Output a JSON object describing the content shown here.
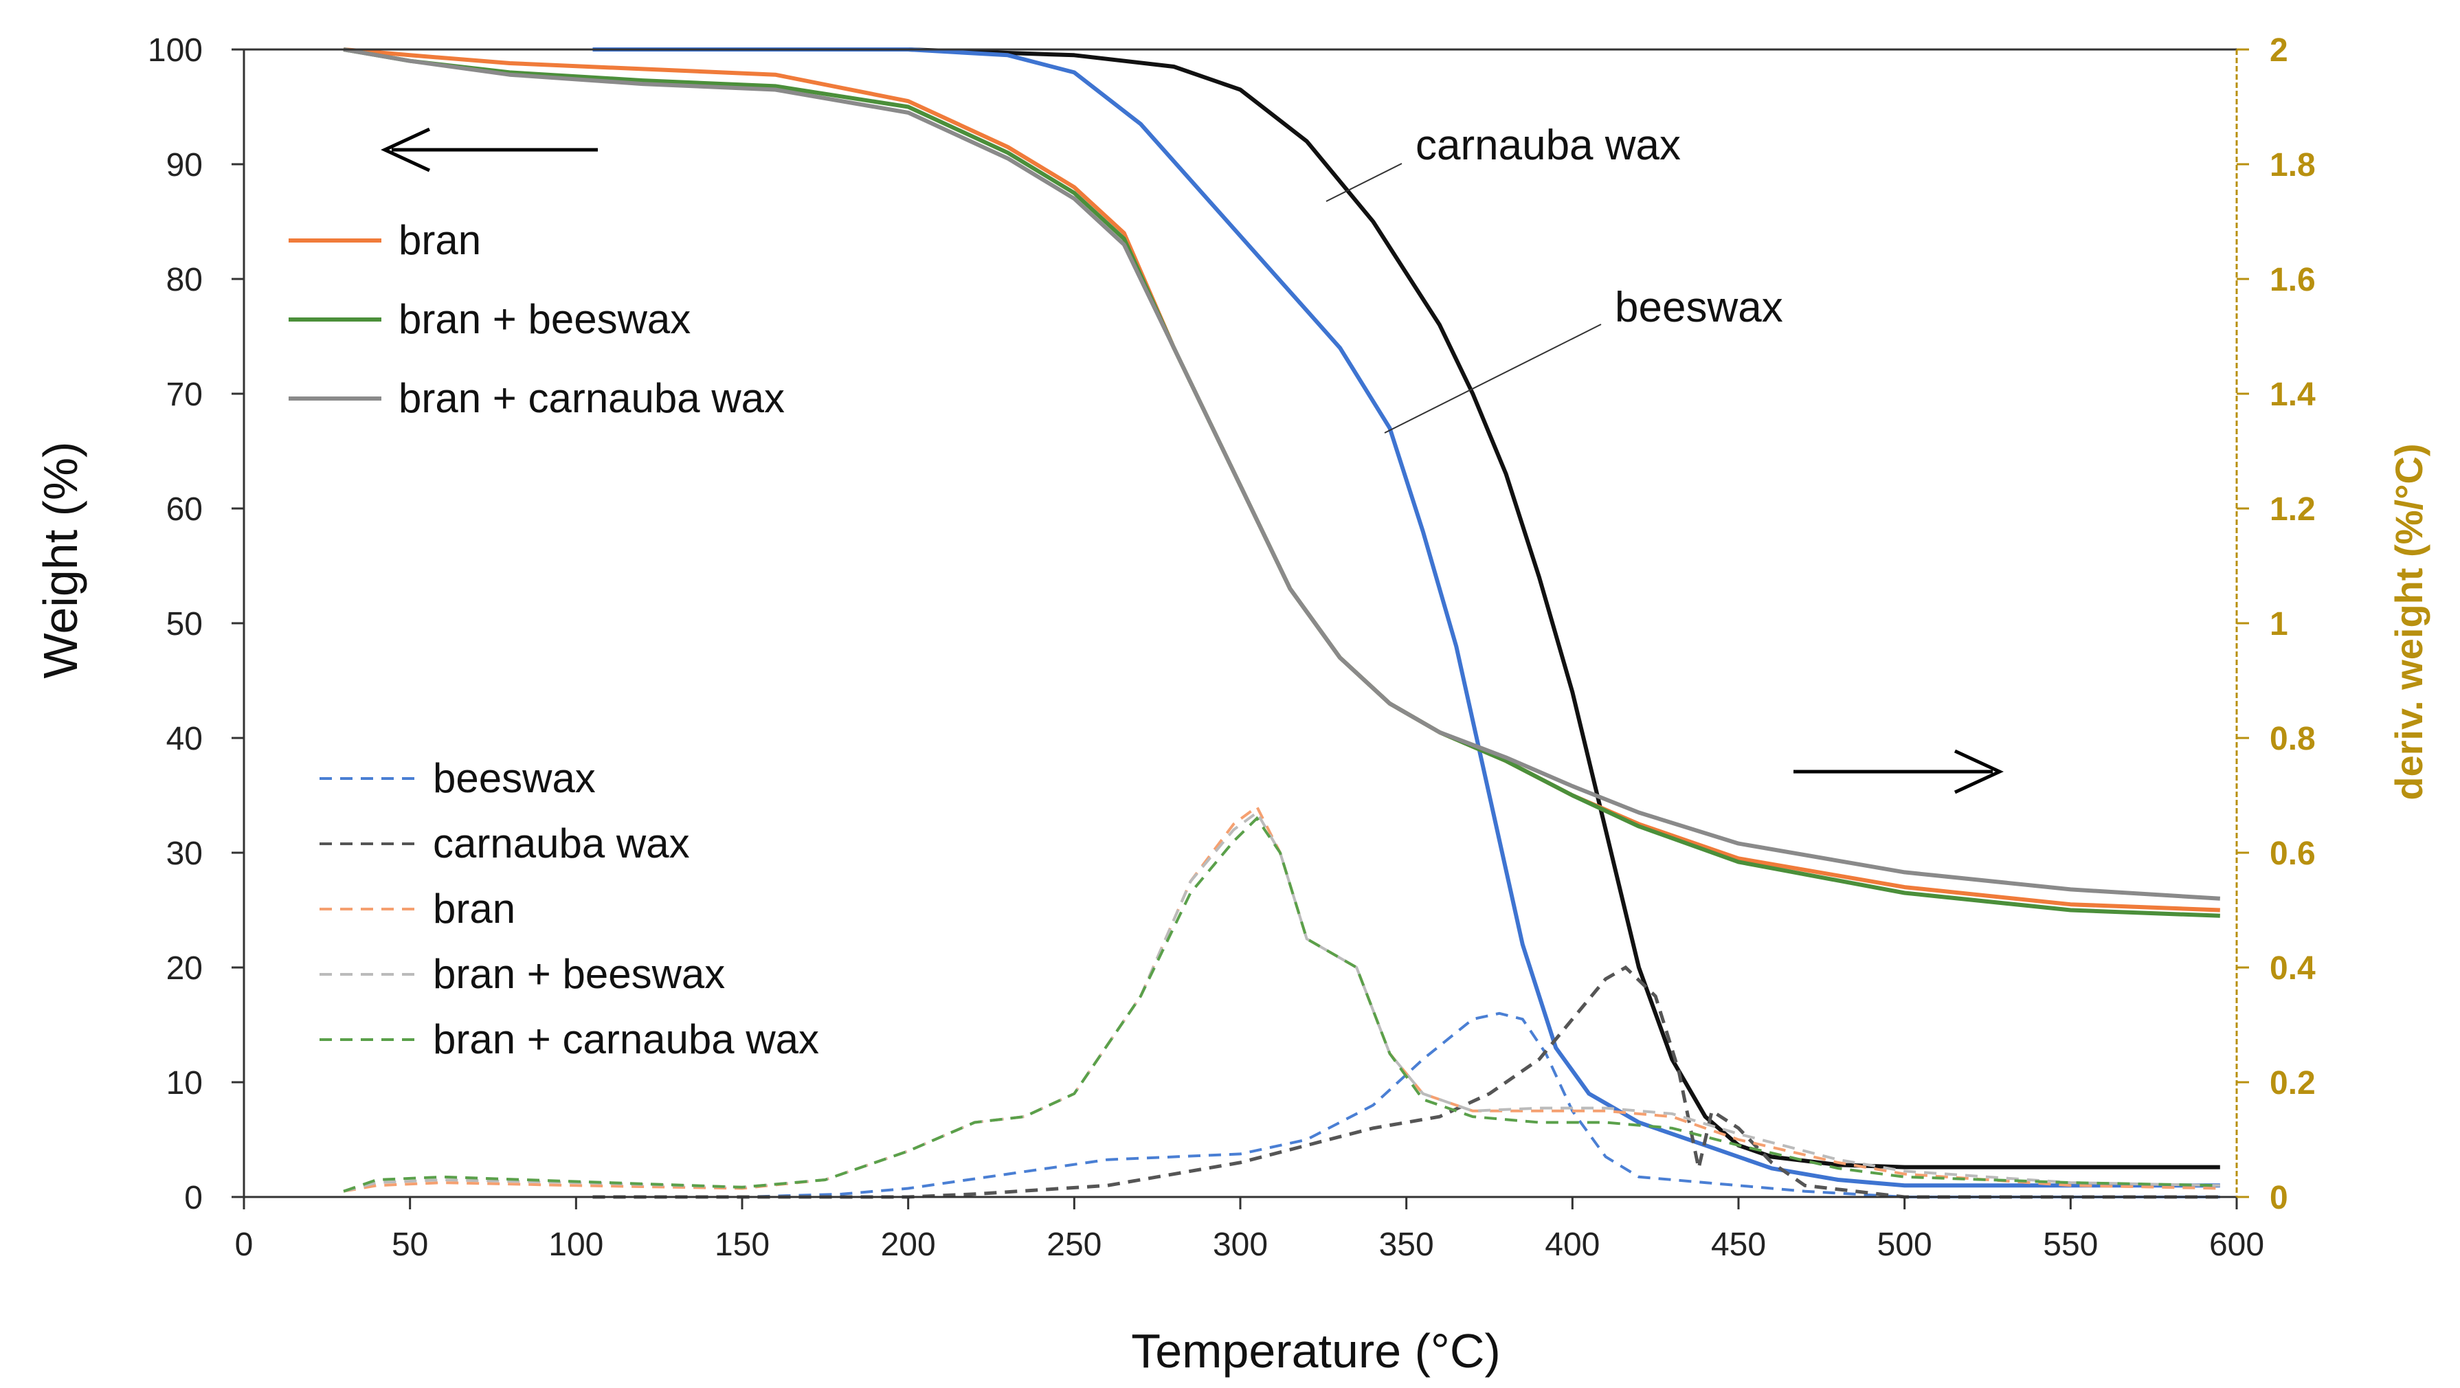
{
  "chart_data": {
    "type": "line",
    "x_axis": {
      "label": "Temperature (°C)",
      "min": 0,
      "max": 600,
      "ticks": [
        0,
        50,
        100,
        150,
        200,
        250,
        300,
        350,
        400,
        450,
        500,
        550,
        600
      ]
    },
    "y_axis_left": {
      "label": "Weight (%)",
      "min": 0,
      "max": 100,
      "ticks": [
        0,
        10,
        20,
        30,
        40,
        50,
        60,
        70,
        80,
        90,
        100
      ]
    },
    "y_axis_right": {
      "label": "deriv. weight (%/°C)",
      "min": 0,
      "max": 2,
      "ticks": [
        "0",
        "0.2",
        "0.4",
        "0.6",
        "0.8",
        "1",
        "1.2",
        "1.4",
        "1.6",
        "1.8",
        "2"
      ],
      "color": "#b8900f"
    },
    "annotations": {
      "carnauba": "carnauba wax",
      "beeswax": "beeswax"
    },
    "legend_solid": [
      {
        "name": "bran",
        "color": "#f07b3a"
      },
      {
        "name": "bran + beeswax",
        "color": "#4b8f3a"
      },
      {
        "name": "bran + carnauba wax",
        "color": "#8a8a8a"
      }
    ],
    "legend_dashed": [
      {
        "name": "beeswax",
        "color": "#4a7fd4"
      },
      {
        "name": "carnauba wax",
        "color": "#555555"
      },
      {
        "name": "bran",
        "color": "#f5a070"
      },
      {
        "name": "bran + beeswax",
        "color": "#bbbbbb"
      },
      {
        "name": "bran + carnauba wax",
        "color": "#5aa04a"
      }
    ],
    "series_weight": [
      {
        "name": "carnauba wax",
        "color": "#111111",
        "points": [
          [
            105,
            100
          ],
          [
            200,
            100
          ],
          [
            250,
            99.5
          ],
          [
            280,
            98.5
          ],
          [
            300,
            96.5
          ],
          [
            320,
            92
          ],
          [
            340,
            85
          ],
          [
            360,
            76
          ],
          [
            370,
            70
          ],
          [
            380,
            63
          ],
          [
            390,
            54
          ],
          [
            400,
            44
          ],
          [
            410,
            32
          ],
          [
            420,
            20
          ],
          [
            430,
            12
          ],
          [
            440,
            7
          ],
          [
            450,
            4.5
          ],
          [
            460,
            3.5
          ],
          [
            480,
            2.8
          ],
          [
            500,
            2.6
          ],
          [
            550,
            2.6
          ],
          [
            595,
            2.6
          ]
        ]
      },
      {
        "name": "beeswax",
        "color": "#3e74d1",
        "points": [
          [
            105,
            100
          ],
          [
            200,
            100
          ],
          [
            230,
            99.5
          ],
          [
            250,
            98
          ],
          [
            270,
            93.5
          ],
          [
            290,
            87
          ],
          [
            310,
            80.5
          ],
          [
            330,
            74
          ],
          [
            345,
            67
          ],
          [
            355,
            58
          ],
          [
            365,
            48
          ],
          [
            375,
            35
          ],
          [
            385,
            22
          ],
          [
            395,
            13
          ],
          [
            405,
            9
          ],
          [
            420,
            6.5
          ],
          [
            440,
            4.5
          ],
          [
            460,
            2.5
          ],
          [
            480,
            1.5
          ],
          [
            500,
            1
          ],
          [
            550,
            1
          ],
          [
            595,
            1
          ]
        ]
      },
      {
        "name": "bran",
        "color": "#f07b3a",
        "points": [
          [
            30,
            100
          ],
          [
            50,
            99.5
          ],
          [
            80,
            98.8
          ],
          [
            120,
            98.3
          ],
          [
            160,
            97.8
          ],
          [
            200,
            95.5
          ],
          [
            230,
            91.5
          ],
          [
            250,
            88
          ],
          [
            265,
            84
          ],
          [
            280,
            74
          ],
          [
            300,
            62
          ],
          [
            315,
            53
          ],
          [
            330,
            47
          ],
          [
            345,
            43
          ],
          [
            360,
            40.5
          ],
          [
            380,
            38
          ],
          [
            400,
            35
          ],
          [
            420,
            32.5
          ],
          [
            450,
            29.5
          ],
          [
            500,
            27
          ],
          [
            550,
            25.5
          ],
          [
            595,
            25
          ]
        ]
      },
      {
        "name": "bran + beeswax",
        "color": "#4b8f3a",
        "points": [
          [
            30,
            100
          ],
          [
            50,
            99
          ],
          [
            80,
            98
          ],
          [
            120,
            97.3
          ],
          [
            160,
            96.8
          ],
          [
            200,
            95
          ],
          [
            230,
            91
          ],
          [
            250,
            87.5
          ],
          [
            265,
            83.5
          ],
          [
            280,
            74
          ],
          [
            300,
            62
          ],
          [
            315,
            53
          ],
          [
            330,
            47
          ],
          [
            345,
            43
          ],
          [
            360,
            40.5
          ],
          [
            380,
            38
          ],
          [
            400,
            35
          ],
          [
            420,
            32.3
          ],
          [
            450,
            29.2
          ],
          [
            500,
            26.5
          ],
          [
            550,
            25
          ],
          [
            595,
            24.5
          ]
        ]
      },
      {
        "name": "bran + carnauba wax",
        "color": "#8a8a8a",
        "points": [
          [
            30,
            100
          ],
          [
            50,
            99
          ],
          [
            80,
            97.8
          ],
          [
            120,
            97
          ],
          [
            160,
            96.5
          ],
          [
            200,
            94.5
          ],
          [
            230,
            90.5
          ],
          [
            250,
            87
          ],
          [
            265,
            83
          ],
          [
            280,
            74
          ],
          [
            300,
            62
          ],
          [
            315,
            53
          ],
          [
            330,
            47
          ],
          [
            345,
            43
          ],
          [
            360,
            40.5
          ],
          [
            380,
            38.3
          ],
          [
            400,
            35.8
          ],
          [
            420,
            33.5
          ],
          [
            450,
            30.8
          ],
          [
            500,
            28.3
          ],
          [
            550,
            26.8
          ],
          [
            595,
            26
          ]
        ]
      }
    ],
    "series_deriv": [
      {
        "name": "beeswax",
        "color": "#4a7fd4",
        "points": [
          [
            105,
            0
          ],
          [
            150,
            0
          ],
          [
            180,
            0.005
          ],
          [
            200,
            0.015
          ],
          [
            230,
            0.04
          ],
          [
            260,
            0.065
          ],
          [
            300,
            0.075
          ],
          [
            320,
            0.1
          ],
          [
            340,
            0.16
          ],
          [
            355,
            0.24
          ],
          [
            370,
            0.31
          ],
          [
            378,
            0.32
          ],
          [
            385,
            0.31
          ],
          [
            392,
            0.25
          ],
          [
            400,
            0.15
          ],
          [
            410,
            0.07
          ],
          [
            420,
            0.035
          ],
          [
            440,
            0.025
          ],
          [
            470,
            0.01
          ],
          [
            500,
            0
          ],
          [
            595,
            0
          ]
        ]
      },
      {
        "name": "carnauba wax",
        "color": "#555555",
        "points": [
          [
            105,
            0
          ],
          [
            200,
            0
          ],
          [
            220,
            0.005
          ],
          [
            260,
            0.02
          ],
          [
            300,
            0.06
          ],
          [
            320,
            0.09
          ],
          [
            340,
            0.12
          ],
          [
            360,
            0.14
          ],
          [
            375,
            0.18
          ],
          [
            390,
            0.24
          ],
          [
            400,
            0.31
          ],
          [
            410,
            0.38
          ],
          [
            416,
            0.4
          ],
          [
            425,
            0.35
          ],
          [
            432,
            0.22
          ],
          [
            438,
            0.05
          ],
          [
            442,
            0.15
          ],
          [
            450,
            0.12
          ],
          [
            460,
            0.06
          ],
          [
            470,
            0.02
          ],
          [
            500,
            0
          ],
          [
            595,
            0
          ]
        ]
      },
      {
        "name": "bran",
        "color": "#f5a070",
        "points": [
          [
            30,
            0.01
          ],
          [
            40,
            0.02
          ],
          [
            60,
            0.025
          ],
          [
            100,
            0.02
          ],
          [
            150,
            0.015
          ],
          [
            175,
            0.03
          ],
          [
            200,
            0.08
          ],
          [
            220,
            0.13
          ],
          [
            235,
            0.14
          ],
          [
            250,
            0.18
          ],
          [
            270,
            0.35
          ],
          [
            285,
            0.55
          ],
          [
            298,
            0.65
          ],
          [
            305,
            0.68
          ],
          [
            312,
            0.6
          ],
          [
            320,
            0.45
          ],
          [
            335,
            0.4
          ],
          [
            345,
            0.25
          ],
          [
            355,
            0.18
          ],
          [
            370,
            0.15
          ],
          [
            390,
            0.15
          ],
          [
            410,
            0.15
          ],
          [
            430,
            0.14
          ],
          [
            450,
            0.1
          ],
          [
            480,
            0.06
          ],
          [
            500,
            0.04
          ],
          [
            550,
            0.02
          ],
          [
            595,
            0.015
          ]
        ]
      },
      {
        "name": "bran + beeswax",
        "color": "#bbbbbb",
        "points": [
          [
            30,
            0.01
          ],
          [
            40,
            0.025
          ],
          [
            60,
            0.03
          ],
          [
            100,
            0.025
          ],
          [
            150,
            0.017
          ],
          [
            175,
            0.03
          ],
          [
            200,
            0.08
          ],
          [
            220,
            0.13
          ],
          [
            235,
            0.14
          ],
          [
            250,
            0.18
          ],
          [
            270,
            0.35
          ],
          [
            285,
            0.55
          ],
          [
            298,
            0.64
          ],
          [
            305,
            0.67
          ],
          [
            312,
            0.6
          ],
          [
            320,
            0.45
          ],
          [
            335,
            0.4
          ],
          [
            345,
            0.25
          ],
          [
            355,
            0.18
          ],
          [
            370,
            0.15
          ],
          [
            390,
            0.155
          ],
          [
            410,
            0.155
          ],
          [
            430,
            0.145
          ],
          [
            450,
            0.11
          ],
          [
            480,
            0.065
          ],
          [
            500,
            0.045
          ],
          [
            550,
            0.025
          ],
          [
            595,
            0.02
          ]
        ]
      },
      {
        "name": "bran + carnauba wax",
        "color": "#5aa04a",
        "points": [
          [
            30,
            0.01
          ],
          [
            40,
            0.03
          ],
          [
            60,
            0.035
          ],
          [
            100,
            0.027
          ],
          [
            150,
            0.017
          ],
          [
            175,
            0.03
          ],
          [
            200,
            0.08
          ],
          [
            220,
            0.13
          ],
          [
            235,
            0.14
          ],
          [
            250,
            0.18
          ],
          [
            270,
            0.35
          ],
          [
            285,
            0.53
          ],
          [
            298,
            0.62
          ],
          [
            305,
            0.66
          ],
          [
            312,
            0.6
          ],
          [
            320,
            0.45
          ],
          [
            335,
            0.4
          ],
          [
            345,
            0.25
          ],
          [
            355,
            0.17
          ],
          [
            370,
            0.14
          ],
          [
            390,
            0.13
          ],
          [
            410,
            0.13
          ],
          [
            430,
            0.12
          ],
          [
            450,
            0.09
          ],
          [
            480,
            0.05
          ],
          [
            500,
            0.035
          ],
          [
            550,
            0.025
          ],
          [
            595,
            0.02
          ]
        ]
      }
    ]
  }
}
